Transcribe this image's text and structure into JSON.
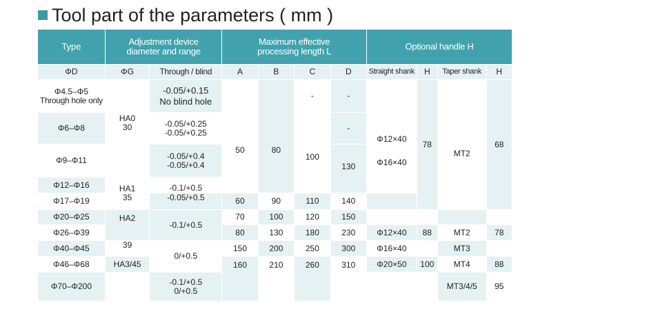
{
  "title": "Tool part of the parameters ( mm )",
  "colors": {
    "header": "#41a2ad",
    "light": "#e6f1f3",
    "accent": "#3a9aa5"
  },
  "headers": {
    "type": "Type",
    "adjust_1": "Adjustment device",
    "adjust_2": "diameter and range",
    "max_1": "Maximum effective",
    "max_2": "processing length L",
    "handle": "Optional handle H"
  },
  "subheaders": {
    "d": "ΦD",
    "g": "ΦG",
    "tb": "Through / blind",
    "a": "A",
    "b": "B",
    "c": "C",
    "dd": "D",
    "straight": "Straight shank",
    "h1": "H",
    "taper": "Taper shank",
    "h2": "H"
  },
  "rows": {
    "d": [
      "Φ4.5–Φ5",
      "Through hole only",
      "Φ6–Φ8",
      "Φ9–Φ11",
      "Φ12–Φ16",
      "Φ17–Φ19",
      "Φ20–Φ25",
      "Φ26–Φ39",
      "Φ40–Φ45",
      "Φ46–Φ68",
      "Φ70–Φ200"
    ],
    "g": {
      "ha0": "HA0",
      "ha0_v": "30",
      "ha1": "HA1",
      "ha1_v": "35",
      "ha2": "HA2",
      "ha2_v": "39",
      "ha3": "HA3/45"
    },
    "tb": {
      "r1a": "-0.05/+0.15",
      "r1b": "No blind hole",
      "r2a": "-0.05/+0.25",
      "r2b": "-0.05/+0.25",
      "r3a": "-0.05/+0.4",
      "r3b": "-0.05/+0.4",
      "r4": "-0.1/+0.5",
      "r5": "-0.05/+0.5",
      "r6": "-0.1/+0.5",
      "r8": "0/+0.5",
      "r10a": "-0.1/+0.5",
      "r10b": "0/+0.5"
    },
    "a": {
      "v1": "50",
      "v2": "60",
      "v3": "70",
      "v4": "80",
      "v5": "150",
      "v6": "160"
    },
    "b": {
      "v1": "80",
      "v2": "90",
      "v3": "100",
      "v4": "130",
      "v5": "200",
      "v6": "210"
    },
    "c": {
      "v0": "-",
      "v1": "100",
      "v2": "110",
      "v3": "120",
      "v4": "180",
      "v5": "250",
      "v6": "260"
    },
    "dd": {
      "v0": "-",
      "v0b": "-",
      "v1": "130",
      "v2": "140",
      "v3": "150",
      "v4": "230",
      "v5": "300",
      "v6": "310"
    },
    "straight": {
      "v1": "Φ12×40",
      "v2": "Φ16×40",
      "v3": "Φ12×40",
      "v4": "Φ16×40",
      "v5": "Φ20×50"
    },
    "h1": {
      "v1": "78",
      "v2": "88",
      "v3": "100"
    },
    "taper": {
      "v1": "MT2",
      "v2": "MT2",
      "v3": "MT3",
      "v4": "MT4",
      "v5": "MT3/4/5"
    },
    "h2": {
      "v1": "68",
      "v2": "78",
      "v3": "88",
      "v4": "95"
    }
  }
}
